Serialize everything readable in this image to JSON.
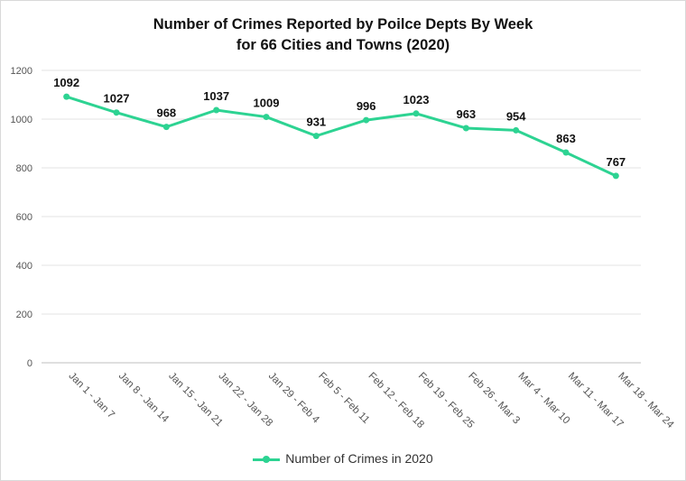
{
  "chart_data": {
    "type": "line",
    "title_line1": "Number of Crimes Reported by Poilce Depts By Week",
    "title_line2": "for 66 Cities and Towns (2020)",
    "categories": [
      "Jan 1 - Jan 7",
      "Jan 8 - Jan 14",
      "Jan 15 - Jan 21",
      "Jan 22 - Jan 28",
      "Jan 29 - Feb 4",
      "Feb 5 - Feb 11",
      "Feb 12 - Feb 18",
      "Feb 19 - Feb 25",
      "Feb 26 - Mar 3",
      "Mar 4 - Mar 10",
      "Mar 11 - Mar 17",
      "Mar 18 - Mar 24"
    ],
    "series": [
      {
        "name": "Number of Crimes in 2020",
        "values": [
          1092,
          1027,
          968,
          1037,
          1009,
          931,
          996,
          1023,
          963,
          954,
          863,
          767
        ]
      }
    ],
    "yticks": [
      0,
      200,
      400,
      600,
      800,
      1000,
      1200
    ],
    "ylim": [
      0,
      1200
    ],
    "grid": true,
    "legend_position": "bottom",
    "color": "#2dd392"
  }
}
